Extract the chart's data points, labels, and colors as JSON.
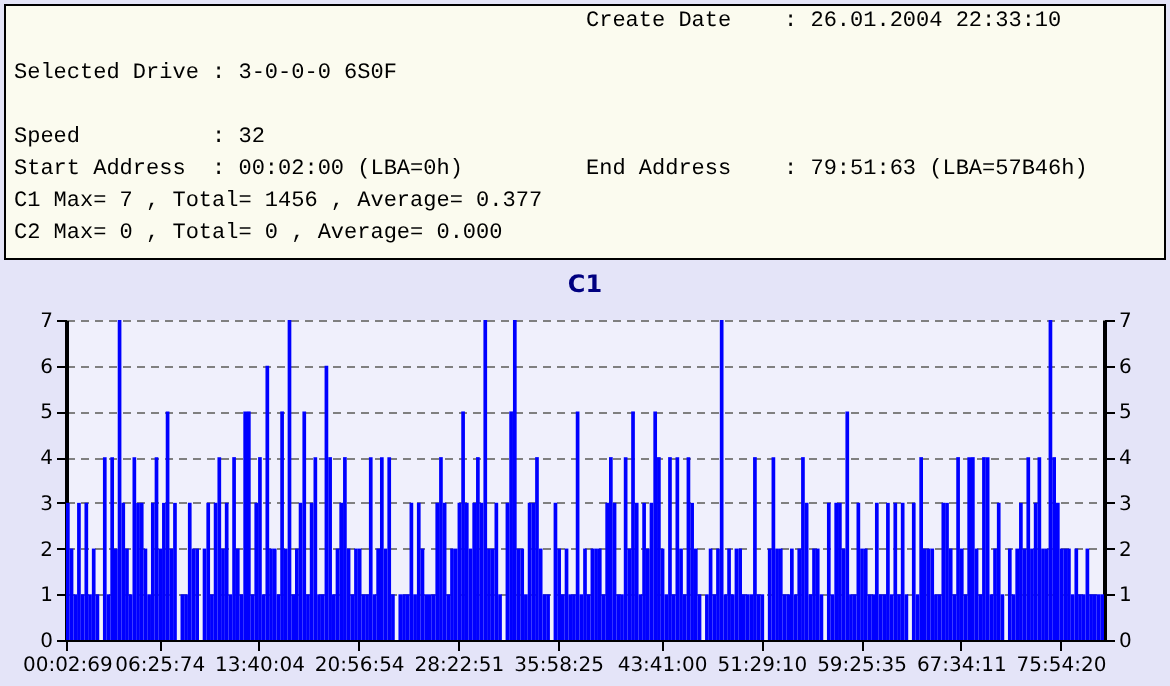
{
  "chart_data": {
    "type": "bar",
    "title": "C1",
    "annotations": [
      "Create Date    : 26.01.2004 22:33:10",
      "Selected Drive : 3-0-0-0 6S0F",
      "Speed          : 32",
      "Start Address  : 00:02:00 (LBA=0h)",
      "End Address    : 79:51:63 (LBA=57B46h)",
      "C1 Max= 7 , Total= 1456 , Average= 0.377",
      "C2 Max= 0 , Total= 0 , Average= 0.000"
    ],
    "categories": [
      "00:02:69",
      null,
      null,
      null,
      null,
      null,
      null,
      null,
      null,
      null,
      null,
      null,
      null,
      null,
      null,
      null,
      null,
      null,
      null,
      null,
      null,
      null,
      null,
      null,
      null,
      "06:25:74",
      null,
      null,
      null,
      null,
      null,
      null,
      null,
      null,
      null,
      null,
      null,
      null,
      null,
      null,
      null,
      null,
      null,
      null,
      null,
      null,
      null,
      null,
      null,
      null,
      null,
      null,
      "13:40:04",
      null,
      null,
      null,
      null,
      null,
      null,
      null,
      null,
      null,
      null,
      null,
      null,
      null,
      null,
      null,
      null,
      null,
      null,
      null,
      null,
      null,
      null,
      null,
      null,
      null,
      null,
      "20:56:54",
      null,
      null,
      null,
      null,
      null,
      null,
      null,
      null,
      null,
      null,
      null,
      null,
      null,
      null,
      null,
      null,
      null,
      null,
      null,
      null,
      null,
      null,
      null,
      null,
      null,
      null,
      "28:22:51",
      null,
      null,
      null,
      null,
      null,
      null,
      null,
      null,
      null,
      null,
      null,
      null,
      null,
      null,
      null,
      null,
      null,
      null,
      null,
      null,
      null,
      null,
      null,
      null,
      null,
      null,
      "35:58:25",
      null,
      null,
      null,
      null,
      null,
      null,
      null,
      null,
      null,
      null,
      null,
      null,
      null,
      null,
      null,
      null,
      null,
      null,
      null,
      null,
      null,
      null,
      null,
      null,
      null,
      null,
      null,
      "43:41:00",
      null,
      null,
      null,
      null,
      null,
      null,
      null,
      null,
      null,
      null,
      null,
      null,
      null,
      null,
      null,
      null,
      null,
      null,
      null,
      null,
      null,
      null,
      null,
      null,
      null,
      null,
      "51:29:10",
      null,
      null,
      null,
      null,
      null,
      null,
      null,
      null,
      null,
      null,
      null,
      null,
      null,
      null,
      null,
      null,
      null,
      null,
      null,
      null,
      null,
      null,
      null,
      null,
      null,
      null,
      "59:25:35",
      null,
      null,
      null,
      null,
      null,
      null,
      null,
      null,
      null,
      null,
      null,
      null,
      null,
      null,
      null,
      null,
      null,
      null,
      null,
      null,
      null,
      null,
      null,
      null,
      null,
      null,
      "67:34:11",
      null,
      null,
      null,
      null,
      null,
      null,
      null,
      null,
      null,
      null,
      null,
      null,
      null,
      null,
      null,
      null,
      null,
      null,
      null,
      null,
      null,
      null,
      null,
      null,
      null,
      null,
      "75:54:20",
      null,
      null,
      null,
      null,
      null,
      null,
      null,
      null,
      null,
      null,
      null
    ],
    "series": [
      {
        "color": "#0000ff",
        "values": [
          3,
          2,
          1,
          3,
          1,
          3,
          1,
          2,
          1,
          0,
          4,
          1,
          4,
          2,
          7,
          3,
          2,
          1,
          4,
          3,
          3,
          2,
          1,
          3,
          4,
          2,
          3,
          5,
          2,
          3,
          0,
          1,
          1,
          3,
          2,
          2,
          0,
          2,
          3,
          1,
          3,
          4,
          2,
          3,
          1,
          4,
          2,
          1,
          5,
          5,
          1,
          3,
          4,
          1,
          6,
          2,
          2,
          1,
          5,
          2,
          7,
          1,
          2,
          3,
          5,
          1,
          3,
          4,
          1,
          1,
          6,
          4,
          1,
          2,
          3,
          4,
          2,
          1,
          2,
          2,
          1,
          1,
          4,
          1,
          2,
          4,
          2,
          4,
          1,
          0,
          1,
          1,
          1,
          3,
          1,
          3,
          2,
          1,
          1,
          1,
          3,
          4,
          3,
          1,
          2,
          2,
          3,
          5,
          3,
          2,
          3,
          4,
          3,
          7,
          2,
          2,
          3,
          1,
          0,
          3,
          5,
          7,
          2,
          2,
          1,
          3,
          3,
          4,
          2,
          1,
          1,
          0,
          3,
          2,
          1,
          2,
          1,
          1,
          5,
          1,
          2,
          1,
          2,
          2,
          2,
          1,
          3,
          4,
          3,
          1,
          1,
          4,
          2,
          5,
          3,
          1,
          3,
          2,
          3,
          5,
          4,
          2,
          1,
          4,
          1,
          4,
          2,
          1,
          4,
          3,
          2,
          1,
          0,
          1,
          2,
          1,
          2,
          7,
          1,
          2,
          1,
          2,
          2,
          1,
          1,
          1,
          4,
          1,
          1,
          0,
          2,
          4,
          2,
          2,
          1,
          1,
          2,
          1,
          2,
          4,
          3,
          1,
          2,
          2,
          1,
          0,
          3,
          1,
          3,
          3,
          2,
          5,
          1,
          1,
          3,
          2,
          2,
          1,
          1,
          3,
          1,
          1,
          3,
          1,
          3,
          1,
          3,
          1,
          0,
          3,
          1,
          4,
          2,
          2,
          2,
          1,
          1,
          3,
          3,
          2,
          1,
          4,
          2,
          1,
          4,
          4,
          2,
          1,
          4,
          4,
          1,
          2,
          3,
          1,
          0,
          2,
          1,
          2,
          3,
          2,
          4,
          2,
          3,
          4,
          2,
          2,
          7,
          4,
          3,
          2,
          2,
          2,
          1,
          2,
          1,
          1,
          2,
          1,
          1,
          1,
          1
        ]
      }
    ],
    "ylim": [
      0,
      7
    ],
    "yticks": [
      0,
      1,
      2,
      3,
      4,
      5,
      6,
      7
    ],
    "y2lim": [
      0,
      7
    ],
    "y2ticks": [
      0,
      1,
      2,
      3,
      4,
      5,
      6,
      7
    ],
    "grid": "y"
  }
}
